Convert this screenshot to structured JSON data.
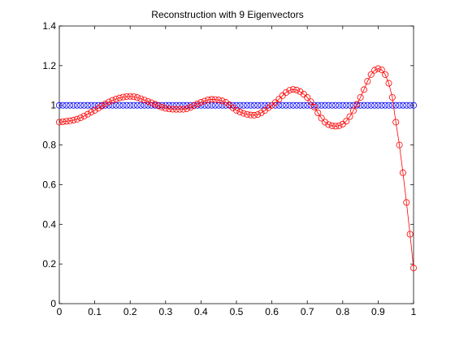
{
  "chart_data": {
    "type": "line",
    "title": "Reconstruction with 9 Eigenvectors",
    "xlabel": "",
    "ylabel": "",
    "xlim": [
      0,
      1
    ],
    "ylim": [
      0,
      1.4
    ],
    "xticks": [
      "0",
      "0.1",
      "0.2",
      "0.3",
      "0.4",
      "0.5",
      "0.6",
      "0.7",
      "0.8",
      "0.9",
      "1"
    ],
    "yticks": [
      "0",
      "0.2",
      "0.4",
      "0.6",
      "0.8",
      "1",
      "1.2",
      "1.4"
    ],
    "grid": false,
    "legend": "none",
    "series": [
      {
        "color": "#0000ff",
        "line": "none",
        "marker": "circle",
        "x_start": 0,
        "x_end": 1,
        "num_points": 101,
        "constant_value": 1.0
      },
      {
        "color": "#ff0000",
        "line": "solid",
        "marker": "circle",
        "x_start": 0,
        "x_end": 1,
        "num_points": 101,
        "points": [
          [
            0.0,
            0.915
          ],
          [
            0.05,
            0.93
          ],
          [
            0.1,
            0.975
          ],
          [
            0.15,
            1.025
          ],
          [
            0.2,
            1.045
          ],
          [
            0.25,
            1.02
          ],
          [
            0.3,
            0.985
          ],
          [
            0.35,
            0.98
          ],
          [
            0.4,
            1.015
          ],
          [
            0.43,
            1.03
          ],
          [
            0.47,
            1.015
          ],
          [
            0.5,
            0.975
          ],
          [
            0.55,
            0.95
          ],
          [
            0.6,
            1.0
          ],
          [
            0.66,
            1.08
          ],
          [
            0.7,
            1.04
          ],
          [
            0.75,
            0.915
          ],
          [
            0.78,
            0.895
          ],
          [
            0.81,
            0.92
          ],
          [
            0.85,
            1.04
          ],
          [
            0.88,
            1.155
          ],
          [
            0.9,
            1.185
          ],
          [
            0.92,
            1.155
          ],
          [
            0.94,
            1.04
          ],
          [
            0.95,
            0.915
          ],
          [
            0.96,
            0.8
          ],
          [
            0.97,
            0.66
          ],
          [
            0.98,
            0.51
          ],
          [
            0.99,
            0.35
          ],
          [
            1.0,
            0.18
          ]
        ]
      }
    ]
  }
}
